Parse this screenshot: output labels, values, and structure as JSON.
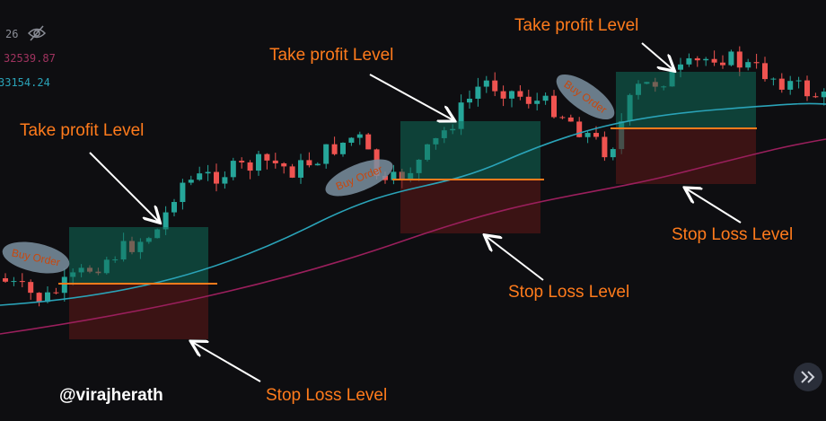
{
  "legend": {
    "length": "26",
    "ma_slow": "32539.87",
    "ma_fast": "33154.24"
  },
  "setups": [
    {
      "take_profit": "Take profit Level",
      "stop_loss": "Stop Loss Level",
      "buy_order": "Buy Order"
    },
    {
      "take_profit": "Take profit Level",
      "stop_loss": "Stop Loss Level",
      "buy_order": "Buy Order"
    },
    {
      "take_profit": "Take profit Level",
      "stop_loss": "Stop Loss Level",
      "buy_order": "Buy Order"
    }
  ],
  "watermark": "@virajherath"
}
